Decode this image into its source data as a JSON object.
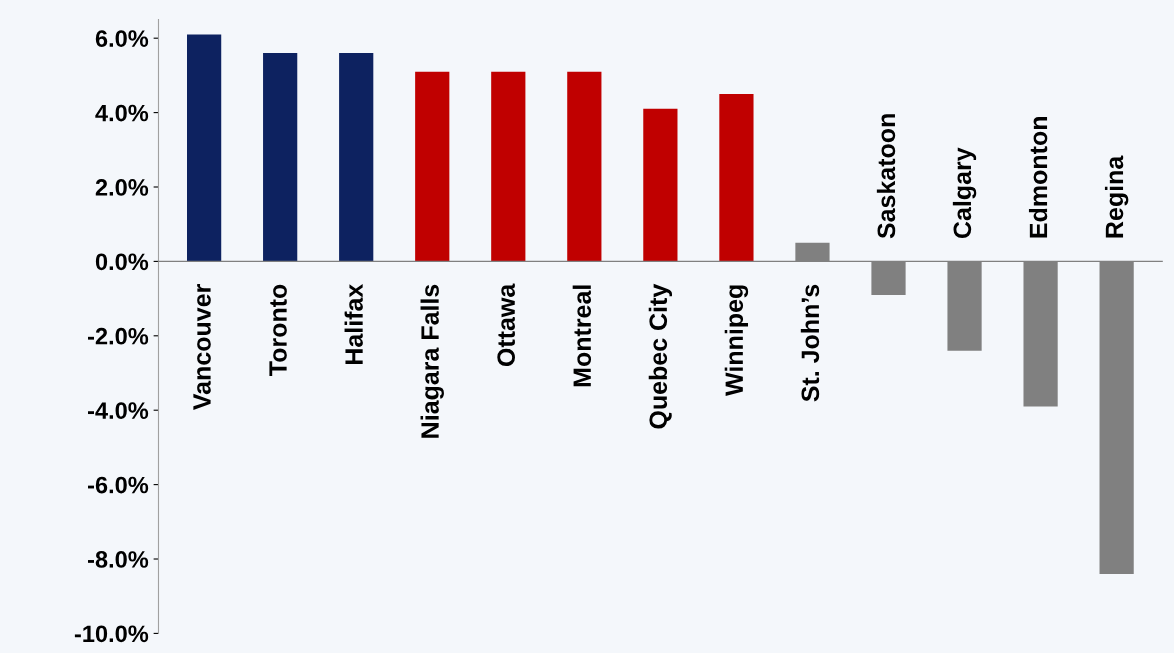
{
  "chart_data": {
    "type": "bar",
    "categories": [
      "Vancouver",
      "Toronto",
      "Halifax",
      "Niagara Falls",
      "Ottawa",
      "Montreal",
      "Quebec City",
      "Winnipeg",
      "St. John’s",
      "Saskatoon",
      "Calgary",
      "Edmonton",
      "Regina"
    ],
    "values": [
      6.1,
      5.6,
      5.6,
      5.1,
      5.1,
      5.1,
      4.1,
      4.5,
      0.5,
      -0.9,
      -2.4,
      -3.9,
      -8.4
    ],
    "colors": [
      "#0d2260",
      "#0d2260",
      "#0d2260",
      "#c00000",
      "#c00000",
      "#c00000",
      "#c00000",
      "#c00000",
      "#808080",
      "#808080",
      "#808080",
      "#808080",
      "#808080"
    ],
    "ylim": [
      -10,
      6.5
    ],
    "yticks": [
      {
        "value": -10,
        "label": "-10.0%"
      },
      {
        "value": -8,
        "label": "-8.0%"
      },
      {
        "value": -6,
        "label": "-6.0%"
      },
      {
        "value": -4,
        "label": "-4.0%"
      },
      {
        "value": -2,
        "label": "-2.0%"
      },
      {
        "value": 0,
        "label": "0.0%"
      },
      {
        "value": 2,
        "label": "2.0%"
      },
      {
        "value": 4,
        "label": "4.0%"
      },
      {
        "value": 6,
        "label": "6.0%"
      }
    ],
    "grid": false,
    "legend": false
  }
}
